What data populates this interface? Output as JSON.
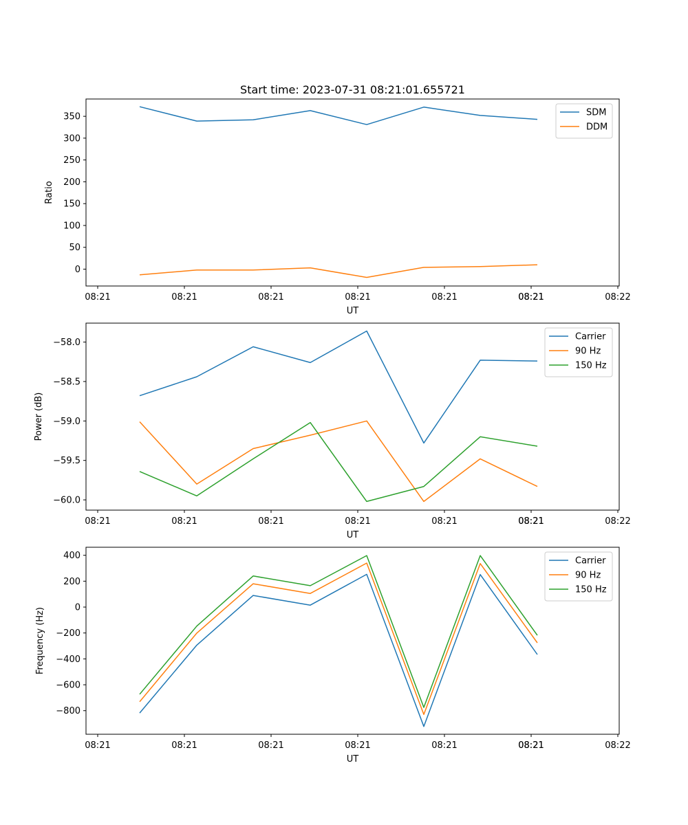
{
  "chart_data": [
    {
      "type": "line",
      "title": "Start time: 2023-07-31 08:21:01.655721",
      "xlabel": "UT",
      "ylabel": "Ratio",
      "x_tick_labels": [
        "08:21",
        "08:21",
        "08:21",
        "08:21",
        "08:21",
        "08:21",
        "08:21",
        "08:22"
      ],
      "ylim": [
        -38.6,
        389.6
      ],
      "yticks": [
        0,
        50,
        100,
        150,
        200,
        250,
        300,
        350
      ],
      "ytick_labels": [
        "0",
        "50",
        "100",
        "150",
        "200",
        "250",
        "300",
        "350"
      ],
      "legend_position": "top-right",
      "series": [
        {
          "name": "SDM",
          "color": "#1f77b4",
          "values": [
            372,
            339,
            342,
            363,
            331,
            371,
            352,
            343
          ]
        },
        {
          "name": "DDM",
          "color": "#ff7f0e",
          "values": [
            -13,
            -2,
            -2,
            3,
            -19,
            4,
            6,
            10
          ]
        }
      ]
    },
    {
      "type": "line",
      "title": "",
      "xlabel": "UT",
      "ylabel": "Power (dB)",
      "x_tick_labels": [
        "08:21",
        "08:21",
        "08:21",
        "08:21",
        "08:21",
        "08:21",
        "08:21",
        "08:22"
      ],
      "ylim": [
        -60.13,
        -57.76
      ],
      "yticks": [
        -58.0,
        -58.5,
        -59.0,
        -59.5,
        -60.0
      ],
      "ytick_labels": [
        "−58.0",
        "−58.5",
        "−59.0",
        "−59.5",
        "−60.0"
      ],
      "legend_position": "top-right",
      "series": [
        {
          "name": "Carrier",
          "color": "#1f77b4",
          "values": [
            -58.68,
            -58.44,
            -58.06,
            -58.26,
            -57.86,
            -59.28,
            -58.23,
            -58.24
          ]
        },
        {
          "name": "90 Hz",
          "color": "#ff7f0e",
          "values": [
            -59.01,
            -59.8,
            -59.35,
            -59.18,
            -59.0,
            -60.02,
            -59.48,
            -59.83
          ]
        },
        {
          "name": "150 Hz",
          "color": "#2ca02c",
          "values": [
            -59.64,
            -59.95,
            -59.48,
            -59.02,
            -60.02,
            -59.83,
            -59.2,
            -59.32
          ]
        }
      ]
    },
    {
      "type": "line",
      "title": "",
      "xlabel": "UT",
      "ylabel": "Frequency (Hz)",
      "x_tick_labels": [
        "08:21",
        "08:21",
        "08:21",
        "08:21",
        "08:21",
        "08:21",
        "08:21",
        "08:22"
      ],
      "ylim": [
        -982,
        462
      ],
      "yticks": [
        400,
        200,
        0,
        -200,
        -400,
        -600,
        -800
      ],
      "ytick_labels": [
        "400",
        "200",
        "0",
        "−200",
        "−400",
        "−600",
        "−800"
      ],
      "legend_position": "top-right",
      "series": [
        {
          "name": "Carrier",
          "color": "#1f77b4",
          "values": [
            -818,
            -294,
            90,
            15,
            253,
            -922,
            251,
            -366
          ]
        },
        {
          "name": "90 Hz",
          "color": "#ff7f0e",
          "values": [
            -731,
            -201,
            180,
            105,
            340,
            -829,
            336,
            -276
          ]
        },
        {
          "name": "150 Hz",
          "color": "#2ca02c",
          "values": [
            -673,
            -147,
            240,
            165,
            398,
            -775,
            398,
            -218
          ]
        }
      ]
    }
  ]
}
